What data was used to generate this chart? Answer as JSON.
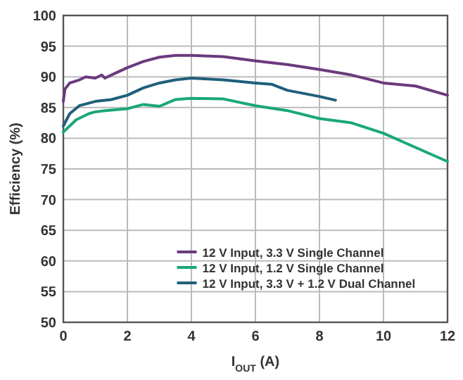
{
  "chart_data": {
    "type": "line",
    "xlabel": "I$_{OUT}$ (A)",
    "ylabel": "Efficiency (%)",
    "xlim": [
      0,
      12
    ],
    "xticks": [
      0,
      2,
      4,
      6,
      8,
      10,
      12
    ],
    "ylim": [
      50,
      100
    ],
    "yticks": [
      50,
      55,
      60,
      65,
      70,
      75,
      80,
      85,
      90,
      95,
      100
    ],
    "grid": true,
    "legend": "bottom right",
    "line_style": "solid",
    "marker": "none",
    "series": [
      {
        "name": "12 V Input, 3.3 V Single Channel",
        "color": "#6b3a7d",
        "x": [
          0,
          0.05,
          0.2,
          0.5,
          0.7,
          1,
          1.2,
          1.3,
          1.5,
          2,
          2.5,
          3,
          3.5,
          4,
          5,
          6,
          7,
          8,
          9,
          10,
          11,
          12
        ],
        "values": [
          86,
          88,
          89,
          89.5,
          90,
          89.8,
          90.3,
          89.8,
          90.3,
          91.5,
          92.5,
          93.2,
          93.5,
          93.5,
          93.3,
          92.6,
          92,
          91.2,
          90.3,
          89,
          88.5,
          87
        ]
      },
      {
        "name": "12 V Input, 1.2 V Single Channel",
        "color": "#1aa77a",
        "x": [
          0,
          0.2,
          0.4,
          0.8,
          1,
          1.3,
          2,
          2.5,
          3,
          3.5,
          4,
          5,
          6,
          7,
          8,
          9,
          10,
          11,
          12
        ],
        "values": [
          81,
          82,
          83,
          84,
          84.3,
          84.5,
          84.8,
          85.5,
          85.2,
          86.3,
          86.5,
          86.4,
          85.3,
          84.5,
          83.2,
          82.5,
          80.8,
          78.5,
          76.2
        ]
      },
      {
        "name": "12 V Input, 3.3 V + 1.2 V Dual Channel",
        "color": "#1f5f7a",
        "x": [
          0,
          0.2,
          0.5,
          1,
          1.5,
          2,
          2.5,
          3,
          3.5,
          4,
          5,
          6,
          6.5,
          7,
          8,
          8.5
        ],
        "values": [
          82,
          84,
          85.3,
          86,
          86.3,
          87,
          88.2,
          89,
          89.5,
          89.8,
          89.5,
          89,
          88.8,
          87.8,
          86.8,
          86.2
        ]
      }
    ]
  }
}
